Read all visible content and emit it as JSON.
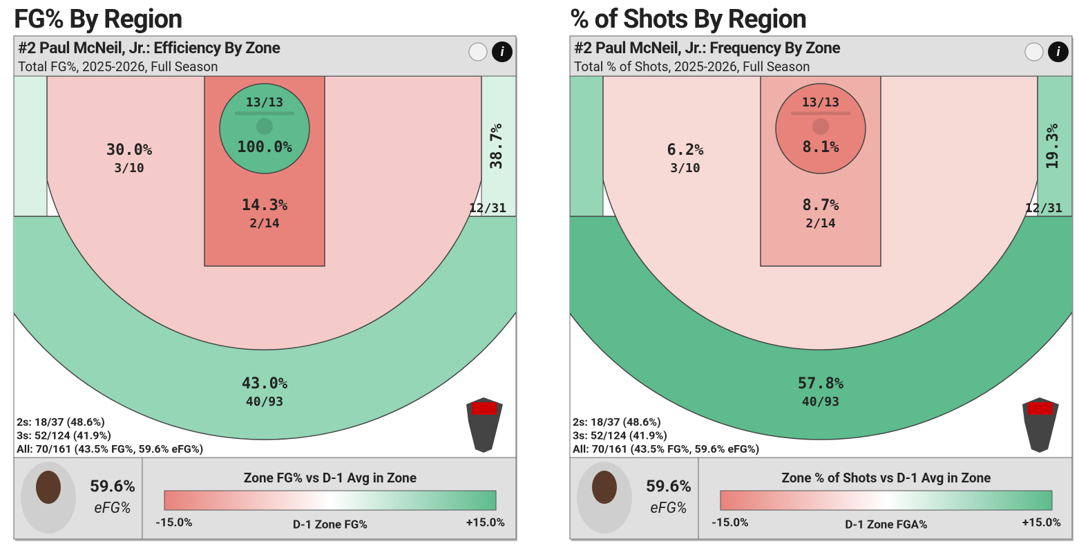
{
  "panels": [
    {
      "heading": "FG% By Region",
      "title": "#2 Paul McNeil, Jr.: Efficiency By Zone",
      "subtitle": "Total FG%, 2025-2026, Full Season",
      "zones": {
        "deep_three": {
          "label": "43.0%",
          "sub": "40/93",
          "color": "#94d6b6"
        },
        "corner_left": {
          "color": "#daf1e6"
        },
        "corner_right": {
          "label": "38.7%",
          "sub": "12/31",
          "color": "#daf1e6"
        },
        "midrange": {
          "label": "30.0%",
          "sub": "3/10",
          "color": "#f4cbc8"
        },
        "paint": {
          "label": "14.3%",
          "sub": "2/14",
          "color": "#e8837b"
        },
        "rim": {
          "label": "100.0%",
          "sub": "13/13",
          "color": "#5dbb8d"
        }
      },
      "stats": [
        "2s: 18/37 (48.6%)",
        "3s: 52/124 (41.9%)",
        "All: 70/161 (43.5% FG%, 59.6% eFG%)"
      ],
      "efg": "59.6%",
      "efg_label": "eFG%",
      "legend": {
        "title": "Zone FG% vs D-1 Avg in Zone",
        "min": "-15.0%",
        "max": "+15.0%",
        "axis": "D-1 Zone FG%",
        "colors": [
          "#e8837b",
          "#ffffff",
          "#5dbb8d"
        ]
      }
    },
    {
      "heading": "% of Shots By Region",
      "title": "#2 Paul McNeil, Jr.: Frequency By Zone",
      "subtitle": "Total % of Shots, 2025-2026, Full Season",
      "zones": {
        "deep_three": {
          "label": "57.8%",
          "sub": "40/93",
          "color": "#5dbb8d"
        },
        "corner_left": {
          "color": "#94d6b6"
        },
        "corner_right": {
          "label": "19.3%",
          "sub": "12/31",
          "color": "#94d6b6"
        },
        "midrange": {
          "label": "6.2%",
          "sub": "3/10",
          "color": "#f7d9d6"
        },
        "paint": {
          "label": "8.7%",
          "sub": "2/14",
          "color": "#f0b0aa"
        },
        "rim": {
          "label": "8.1%",
          "sub": "13/13",
          "color": "#e8837b"
        }
      },
      "stats": [
        "2s: 18/37 (48.6%)",
        "3s: 52/124 (41.9%)",
        "All: 70/161 (43.5% FG%, 59.6% eFG%)"
      ],
      "efg": "59.6%",
      "efg_label": "eFG%",
      "legend": {
        "title": "Zone % of Shots vs D-1 Avg in Zone",
        "min": "-15.0%",
        "max": "+15.0%",
        "axis": "D-1 Zone FGA%",
        "colors": [
          "#e8837b",
          "#ffffff",
          "#5dbb8d"
        ]
      }
    }
  ]
}
